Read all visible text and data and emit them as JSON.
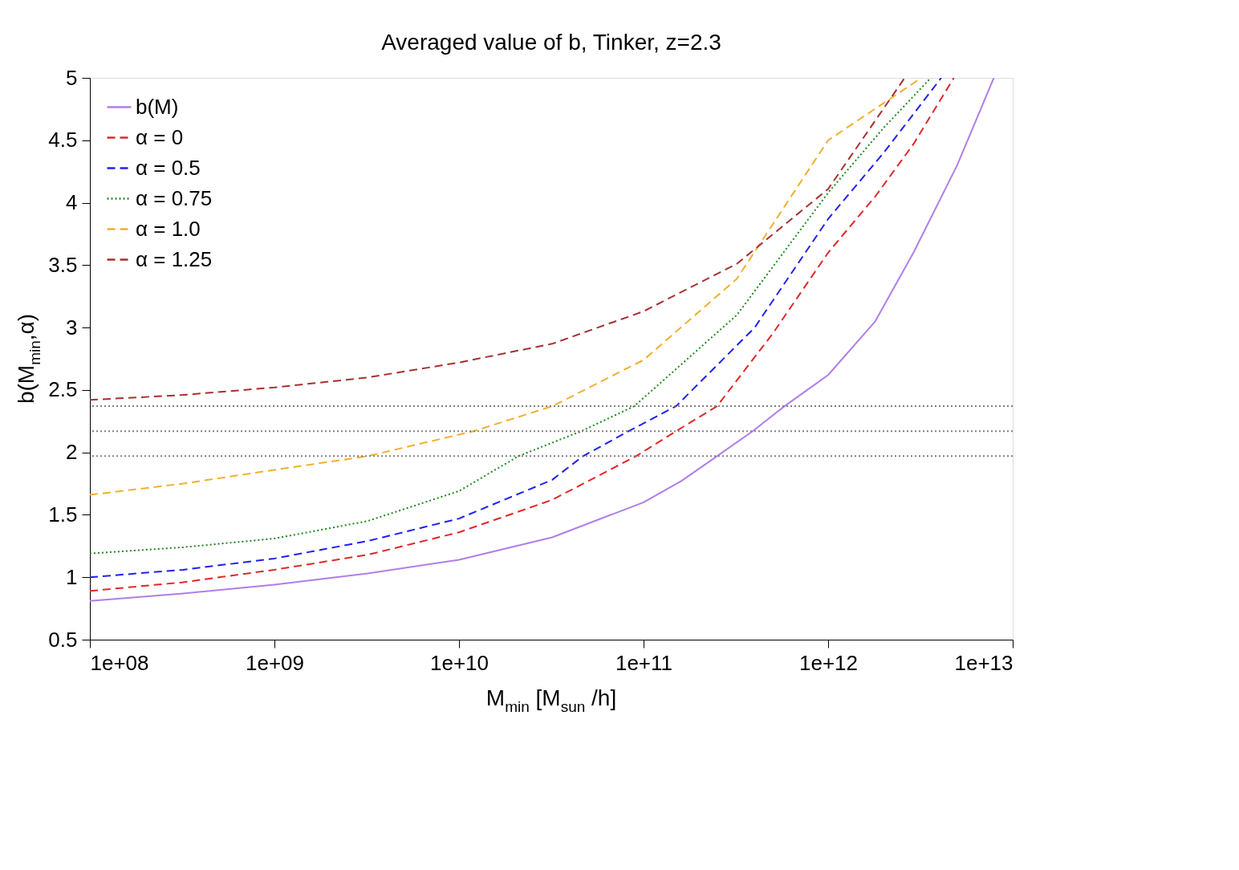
{
  "chart_data": {
    "type": "line",
    "title": "Averaged value of b, Tinker, z=2.3",
    "xlabel": "M$_{min}$ [M$_{sun}$ /h]",
    "ylabel": "b(M$_{min}$,α)",
    "log": "x",
    "xlim": [
      100000000.0,
      10000000000000.0
    ],
    "xticks": [
      {
        "value": 100000000.0,
        "label": "1e+08"
      },
      {
        "value": 1000000000.0,
        "label": "1e+09"
      },
      {
        "value": 10000000000.0,
        "label": "1e+10"
      },
      {
        "value": 100000000000.0,
        "label": "1e+11"
      },
      {
        "value": 1000000000000.0,
        "label": "1e+12"
      },
      {
        "value": 10000000000000.0,
        "label": "1e+13"
      }
    ],
    "ylim": [
      0.5,
      5
    ],
    "yticks": [
      0.5,
      1,
      1.5,
      2,
      2.5,
      3,
      3.5,
      4,
      4.5,
      5
    ],
    "grid": false,
    "legend": "top left",
    "marker": "none",
    "series": [
      {
        "name": "b(M)",
        "color": "#b07ee8",
        "line_style": "solid",
        "x": [
          100000000.0,
          320000000.0,
          1000000000.0,
          3200000000.0,
          10000000000.0,
          32000000000.0,
          100000000000.0,
          160000000000.0,
          250000000000.0,
          390000000000.0,
          580000000000.0,
          1000000000000.0,
          1800000000000.0,
          2900000000000.0,
          5000000000000.0,
          7900000000000.0
        ],
        "values": [
          0.81,
          0.87,
          0.94,
          1.03,
          1.14,
          1.32,
          1.6,
          1.77,
          1.97,
          2.17,
          2.37,
          2.62,
          3.05,
          3.6,
          4.3,
          5
        ]
      },
      {
        "name": "α = 0",
        "color": "#e02828",
        "line_style": "dashed",
        "x": [
          100000000.0,
          320000000.0,
          1000000000.0,
          3200000000.0,
          10000000000.0,
          32000000000.0,
          91000000000.0,
          150000000000.0,
          250000000000.0,
          500000000000.0,
          1000000000000.0,
          1800000000000.0,
          2900000000000.0,
          4800000000000.0
        ],
        "values": [
          0.89,
          0.96,
          1.06,
          1.18,
          1.36,
          1.62,
          1.97,
          2.17,
          2.37,
          2.95,
          3.6,
          4.05,
          4.47,
          5
        ]
      },
      {
        "name": "α = 0.5",
        "color": "#2020f0",
        "line_style": "dashed",
        "x": [
          100000000.0,
          320000000.0,
          1000000000.0,
          3200000000.0,
          10000000000.0,
          32000000000.0,
          47000000000.0,
          83000000000.0,
          150000000000.0,
          400000000000.0,
          1000000000000.0,
          2000000000000.0,
          4100000000000.0
        ],
        "values": [
          1.0,
          1.06,
          1.15,
          1.29,
          1.47,
          1.78,
          1.97,
          2.17,
          2.37,
          3.0,
          3.87,
          4.4,
          5
        ]
      },
      {
        "name": "α = 0.75",
        "color": "#1a8a1a",
        "line_style": "dotted",
        "x": [
          100000000.0,
          320000000.0,
          1000000000.0,
          3200000000.0,
          10000000000.0,
          21000000000.0,
          46000000000.0,
          89000000000.0,
          320000000000.0,
          1000000000000.0,
          2000000000000.0,
          3600000000000.0
        ],
        "values": [
          1.19,
          1.24,
          1.31,
          1.45,
          1.69,
          1.97,
          2.17,
          2.37,
          3.1,
          4.08,
          4.6,
          5
        ]
      },
      {
        "name": "α = 1.0",
        "color": "#f0b030",
        "line_style": "dashed",
        "x": [
          100000000.0,
          320000000.0,
          1000000000.0,
          3200000000.0,
          12000000000.0,
          32000000000.0,
          100000000000.0,
          320000000000.0,
          1000000000000.0,
          3200000000000.0
        ],
        "values": [
          1.66,
          1.75,
          1.86,
          1.97,
          2.17,
          2.37,
          2.74,
          3.39,
          4.5,
          5
        ]
      },
      {
        "name": "α = 1.25",
        "color": "#a83030",
        "line_style": "dashed",
        "x": [
          100000000.0,
          320000000.0,
          1000000000.0,
          3200000000.0,
          10000000000.0,
          32000000000.0,
          100000000000.0,
          320000000000.0,
          1000000000000.0,
          2600000000000.0
        ],
        "values": [
          2.42,
          2.46,
          2.52,
          2.6,
          2.72,
          2.87,
          3.13,
          3.51,
          4.11,
          5
        ]
      }
    ],
    "ref_lines": [
      {
        "axis": "y",
        "value": 2.37,
        "color": "#808080",
        "line_style": "dotted"
      },
      {
        "axis": "y",
        "value": 2.17,
        "color": "#808080",
        "line_style": "dotted"
      },
      {
        "axis": "y",
        "value": 1.97,
        "color": "#808080",
        "line_style": "dotted"
      }
    ]
  }
}
